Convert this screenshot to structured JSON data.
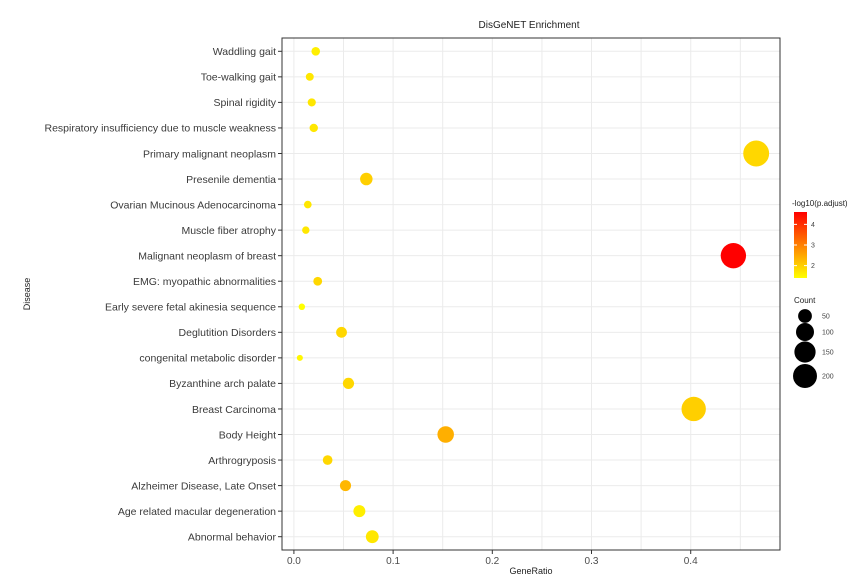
{
  "chart_data": {
    "type": "scatter",
    "title": "DisGeNET Enrichment",
    "xlabel": "GeneRatio",
    "ylabel": "Disease",
    "xlim": [
      -0.012,
      0.49
    ],
    "x_ticks": [
      "0.0",
      "0.1",
      "0.2",
      "0.3",
      "0.4"
    ],
    "x_tick_values": [
      0.0,
      0.1,
      0.2,
      0.3,
      0.4
    ],
    "categories": [
      "Waddling gait",
      "Toe-walking gait",
      "Spinal rigidity",
      "Respiratory insufficiency due to muscle weakness",
      "Primary malignant neoplasm",
      "Presenile dementia",
      "Ovarian Mucinous Adenocarcinoma",
      "Muscle fiber atrophy",
      "Malignant neoplasm of breast",
      "EMG: myopathic abnormalities",
      "Early severe fetal akinesia sequence",
      "Deglutition Disorders",
      "congenital metabolic disorder",
      "Byzanthine arch palate",
      "Breast Carcinoma",
      "Body Height",
      "Arthrogryposis",
      "Alzheimer Disease, Late Onset",
      "Age related macular degeneration",
      "Abnormal behavior"
    ],
    "points": [
      {
        "disease": "Waddling gait",
        "gene_ratio": 0.022,
        "count": 12,
        "neg_log10_padj": 1.6
      },
      {
        "disease": "Toe-walking gait",
        "gene_ratio": 0.016,
        "count": 9,
        "neg_log10_padj": 1.7
      },
      {
        "disease": "Spinal rigidity",
        "gene_ratio": 0.018,
        "count": 10,
        "neg_log10_padj": 1.7
      },
      {
        "disease": "Respiratory insufficiency due to muscle weakness",
        "gene_ratio": 0.02,
        "count": 11,
        "neg_log10_padj": 1.7
      },
      {
        "disease": "Primary malignant neoplasm",
        "gene_ratio": 0.466,
        "count": 240,
        "neg_log10_padj": 1.9
      },
      {
        "disease": "Presenile dementia",
        "gene_ratio": 0.073,
        "count": 38,
        "neg_log10_padj": 2.0
      },
      {
        "disease": "Ovarian Mucinous Adenocarcinoma",
        "gene_ratio": 0.014,
        "count": 8,
        "neg_log10_padj": 1.7
      },
      {
        "disease": "Muscle fiber atrophy",
        "gene_ratio": 0.012,
        "count": 7,
        "neg_log10_padj": 1.7
      },
      {
        "disease": "Malignant neoplasm of breast",
        "gene_ratio": 0.443,
        "count": 228,
        "neg_log10_padj": 4.6
      },
      {
        "disease": "EMG: myopathic abnormalities",
        "gene_ratio": 0.024,
        "count": 13,
        "neg_log10_padj": 1.9
      },
      {
        "disease": "Early severe fetal akinesia sequence",
        "gene_ratio": 0.008,
        "count": 4,
        "neg_log10_padj": 1.4
      },
      {
        "disease": "Deglutition Disorders",
        "gene_ratio": 0.048,
        "count": 25,
        "neg_log10_padj": 1.9
      },
      {
        "disease": "congenital metabolic disorder",
        "gene_ratio": 0.006,
        "count": 3,
        "neg_log10_padj": 1.5
      },
      {
        "disease": "Byzanthine arch palate",
        "gene_ratio": 0.055,
        "count": 28,
        "neg_log10_padj": 1.9
      },
      {
        "disease": "Breast Carcinoma",
        "gene_ratio": 0.403,
        "count": 208,
        "neg_log10_padj": 2.0
      },
      {
        "disease": "Body Height",
        "gene_ratio": 0.153,
        "count": 80,
        "neg_log10_padj": 2.4
      },
      {
        "disease": "Arthrogryposis",
        "gene_ratio": 0.034,
        "count": 18,
        "neg_log10_padj": 1.9
      },
      {
        "disease": "Alzheimer Disease, Late Onset",
        "gene_ratio": 0.052,
        "count": 27,
        "neg_log10_padj": 2.3
      },
      {
        "disease": "Age related macular degeneration",
        "gene_ratio": 0.066,
        "count": 34,
        "neg_log10_padj": 1.6
      },
      {
        "disease": "Abnormal behavior",
        "gene_ratio": 0.079,
        "count": 41,
        "neg_log10_padj": 1.7
      }
    ],
    "color_legend": {
      "title": "-log10(p.adjust)",
      "ticks": [
        "2",
        "3",
        "4"
      ],
      "tick_values": [
        2,
        3,
        4
      ],
      "range": [
        1.4,
        4.6
      ],
      "low_color": "#ffff00",
      "high_color": "#ff0000"
    },
    "size_legend": {
      "title": "Count",
      "ticks": [
        "50",
        "100",
        "150",
        "200"
      ],
      "tick_values": [
        50,
        100,
        150,
        200
      ]
    },
    "grid": true,
    "legend_position": "right"
  }
}
